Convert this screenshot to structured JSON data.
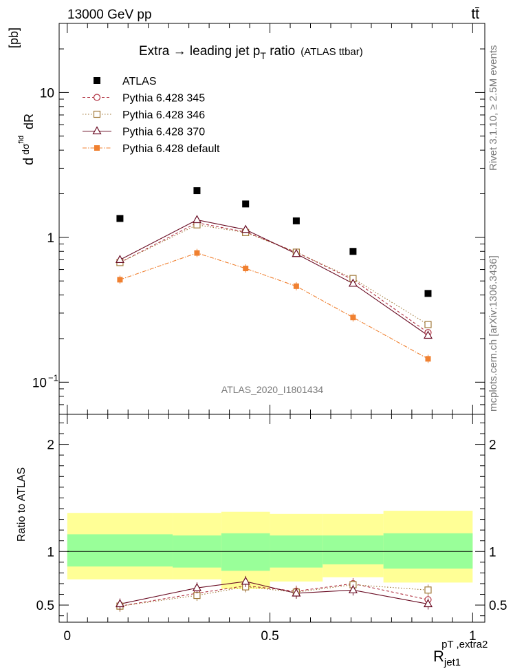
{
  "header": {
    "left": "13000 GeV pp",
    "right": "tt̄"
  },
  "side_labels": {
    "rivet": "Rivet 3.1.10, ≥ 2.5M events",
    "mcplots": "mcplots.cern.ch [arXiv:1306.3436]"
  },
  "chart_data": {
    "type": "line",
    "title": "Extra → leading jet p_T ratio (ATLAS ttbar)",
    "title_main": "Extra → leading jet p",
    "title_sub": "T",
    "title_tail": " ratio",
    "title_small": "(ATLAS ttbar)",
    "analysis_tag": "ATLAS_2020_I1801434",
    "ylabel_top": "dσ^fid / dR [pb]",
    "ylabel_bottom": "Ratio to ATLAS",
    "xlabel": "R_jet1^{pT,extra2}",
    "xlabel_main": "R",
    "xlabel_sub": "jet1",
    "xlabel_sup": "pT ,extra2",
    "top_yscale": "log",
    "top_ylim": [
      0.06,
      30
    ],
    "top_yticks": [
      0.1,
      1,
      10
    ],
    "top_ytick_labels": [
      "10",
      "1",
      "10"
    ],
    "top_ytick_exp": [
      "−1",
      "",
      ""
    ],
    "bottom_ylim": [
      0.34,
      2.28
    ],
    "bottom_yticks": [
      0.5,
      1,
      2
    ],
    "bottom_ytick_labels": [
      "0.5",
      "1",
      "2"
    ],
    "xlim": [
      -0.02,
      1.03
    ],
    "xticks": [
      0,
      0.5,
      1
    ],
    "xtick_labels": [
      "0",
      "0.5",
      "1"
    ],
    "bin_edges": [
      0.0,
      0.26,
      0.38,
      0.5,
      0.63,
      0.78,
      1.0
    ],
    "x": [
      0.13,
      0.32,
      0.44,
      0.565,
      0.705,
      0.89
    ],
    "atlas": {
      "name": "ATLAS",
      "values": [
        1.35,
        2.1,
        1.7,
        1.3,
        0.8,
        0.41
      ],
      "color": "#000000"
    },
    "series": [
      {
        "name": "Pythia 6.428 345",
        "values": [
          0.67,
          1.26,
          1.09,
          0.79,
          0.51,
          0.22
        ],
        "ratio": [
          0.49,
          0.61,
          0.68,
          0.63,
          0.7,
          0.55
        ],
        "color": "#b03040",
        "dash": "4,3",
        "marker": "circle"
      },
      {
        "name": "Pythia 6.428 346",
        "values": [
          0.67,
          1.22,
          1.08,
          0.79,
          0.52,
          0.25
        ],
        "ratio": [
          0.49,
          0.59,
          0.67,
          0.62,
          0.69,
          0.64
        ],
        "color": "#a07838",
        "dash": "1.5,2.5",
        "marker": "square"
      },
      {
        "name": "Pythia 6.428 370",
        "values": [
          0.7,
          1.32,
          1.13,
          0.77,
          0.48,
          0.21
        ],
        "ratio": [
          0.51,
          0.66,
          0.72,
          0.61,
          0.64,
          0.51
        ],
        "color": "#6a0d24",
        "dash": "",
        "marker": "triangle"
      },
      {
        "name": "Pythia 6.428 default",
        "values": [
          0.51,
          0.78,
          0.61,
          0.46,
          0.28,
          0.145
        ],
        "color": "#f08030",
        "dash": "6,2,1.5,2",
        "marker": "filled-square"
      }
    ],
    "uncertainty_bands": {
      "yellow": [
        [
          0.74,
          1.36
        ],
        [
          0.74,
          1.36
        ],
        [
          0.65,
          1.37
        ],
        [
          0.72,
          1.35
        ],
        [
          0.76,
          1.35
        ],
        [
          0.71,
          1.38
        ]
      ],
      "green": [
        [
          0.86,
          1.16
        ],
        [
          0.85,
          1.15
        ],
        [
          0.82,
          1.17
        ],
        [
          0.85,
          1.15
        ],
        [
          0.88,
          1.15
        ],
        [
          0.84,
          1.17
        ]
      ]
    },
    "colors": {
      "yellow_band": "#ffff96",
      "green_band": "#99ff99"
    }
  }
}
